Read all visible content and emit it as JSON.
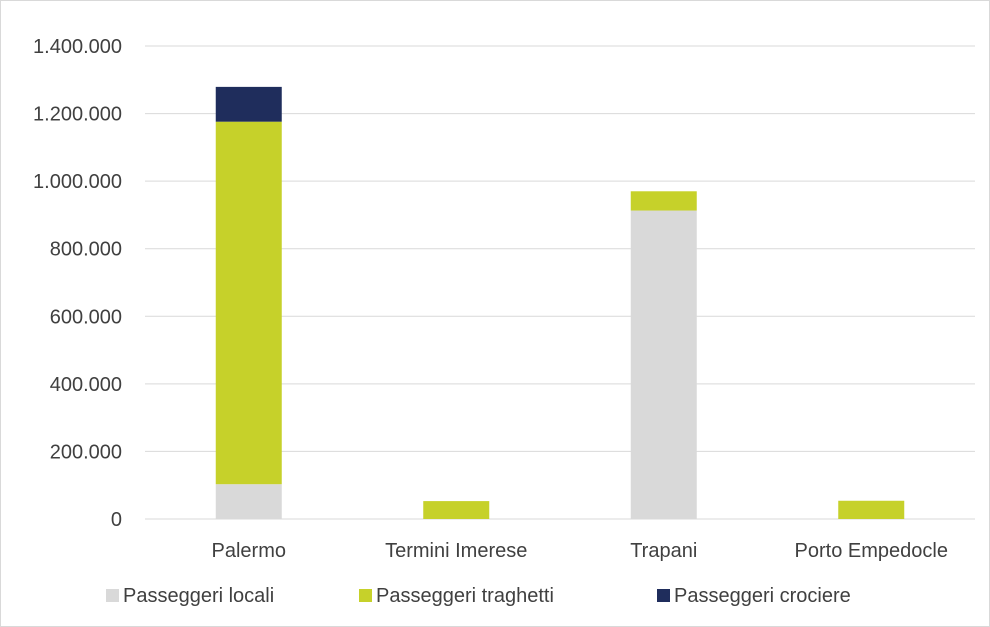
{
  "chart_data": {
    "type": "bar",
    "stacked": true,
    "categories": [
      "Palermo",
      "Termini Imerese",
      "Trapani",
      "Porto Empedocle"
    ],
    "series": [
      {
        "name": "Passeggeri locali",
        "color": "#d9d9d9",
        "values": [
          103000,
          0,
          913000,
          0
        ]
      },
      {
        "name": "Passeggeri traghetti",
        "color": "#c6d12a",
        "values": [
          1073000,
          53000,
          57000,
          54000
        ]
      },
      {
        "name": "Passeggeri crociere",
        "color": "#1f2d5c",
        "values": [
          103000,
          0,
          0,
          0
        ]
      }
    ],
    "ylim": [
      0,
      1400000
    ],
    "yticks": [
      0,
      200000,
      400000,
      600000,
      800000,
      1000000,
      1200000,
      1400000
    ],
    "ytick_labels": [
      "0",
      "200.000",
      "400.000",
      "600.000",
      "800.000",
      "1.000.000",
      "1.200.000",
      "1.400.000"
    ],
    "grid": true,
    "legend_position": "bottom"
  }
}
